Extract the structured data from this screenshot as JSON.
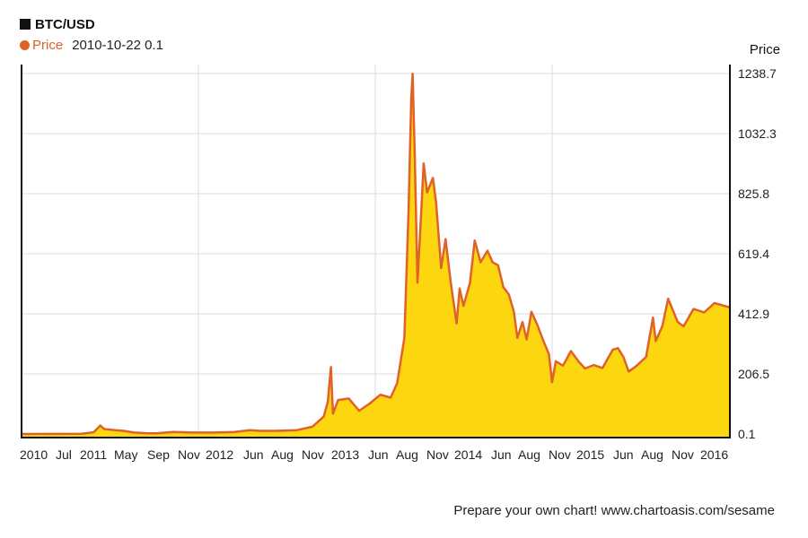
{
  "header": {
    "title": "BTC/USD",
    "legend_name": "Price",
    "legend_readout_date": "2010-10-22",
    "legend_readout_value": "0.1"
  },
  "footer": {
    "note": "Prepare your own chart! www.chartoasis.com/sesame"
  },
  "colors": {
    "line": "#e0622a",
    "fill": "#fcd60f",
    "grid": "#dddddd",
    "axis": "#111111"
  },
  "chart_data": {
    "type": "area",
    "y_axis_title": "Price",
    "y_axis_side": "right",
    "y_ticks": [
      "0.1",
      "206.5",
      "412.9",
      "619.4",
      "825.8",
      "1032.3",
      "1238.7"
    ],
    "ylim": [
      0.1,
      1238.7
    ],
    "x_tick_labels": [
      "2010",
      "Jul",
      "2011",
      "May",
      "Sep",
      "Nov",
      "2012",
      "Jun",
      "Aug",
      "Nov",
      "2013",
      "Jun",
      "Aug",
      "Nov",
      "2014",
      "Jun",
      "Aug",
      "Nov",
      "2015",
      "Jun",
      "Aug",
      "Nov",
      "2016"
    ],
    "x_range": [
      "2010-10-22",
      "2016-06-15"
    ],
    "grid": true,
    "series": [
      {
        "name": "Price",
        "points": [
          [
            "2010-10-22",
            0.1
          ],
          [
            "2011-02-01",
            0.5
          ],
          [
            "2011-04-15",
            1.0
          ],
          [
            "2011-05-20",
            6.0
          ],
          [
            "2011-06-08",
            29.0
          ],
          [
            "2011-06-20",
            17.0
          ],
          [
            "2011-07-15",
            14.0
          ],
          [
            "2011-08-15",
            11.0
          ],
          [
            "2011-09-15",
            5.0
          ],
          [
            "2011-10-20",
            3.0
          ],
          [
            "2011-11-18",
            2.3
          ],
          [
            "2012-01-08",
            7.0
          ],
          [
            "2012-03-01",
            5.0
          ],
          [
            "2012-05-01",
            5.0
          ],
          [
            "2012-07-01",
            6.5
          ],
          [
            "2012-08-17",
            13.5
          ],
          [
            "2012-09-15",
            11.0
          ],
          [
            "2012-11-01",
            11.0
          ],
          [
            "2013-01-01",
            13.5
          ],
          [
            "2013-02-15",
            25.0
          ],
          [
            "2013-03-20",
            60.0
          ],
          [
            "2013-04-01",
            110.0
          ],
          [
            "2013-04-10",
            230.0
          ],
          [
            "2013-04-16",
            70.0
          ],
          [
            "2013-05-01",
            117.0
          ],
          [
            "2013-06-01",
            122.0
          ],
          [
            "2013-07-01",
            80.0
          ],
          [
            "2013-08-01",
            105.0
          ],
          [
            "2013-09-01",
            135.0
          ],
          [
            "2013-10-01",
            125.0
          ],
          [
            "2013-10-20",
            175.0
          ],
          [
            "2013-11-10",
            330.0
          ],
          [
            "2013-11-22",
            760.0
          ],
          [
            "2013-11-30",
            1155.0
          ],
          [
            "2013-12-04",
            1238.0
          ],
          [
            "2013-12-10",
            970.0
          ],
          [
            "2013-12-18",
            520.0
          ],
          [
            "2013-12-28",
            740.0
          ],
          [
            "2014-01-05",
            930.0
          ],
          [
            "2014-01-15",
            830.0
          ],
          [
            "2014-02-01",
            880.0
          ],
          [
            "2014-02-10",
            800.0
          ],
          [
            "2014-02-25",
            570.0
          ],
          [
            "2014-03-10",
            670.0
          ],
          [
            "2014-03-25",
            520.0
          ],
          [
            "2014-04-11",
            380.0
          ],
          [
            "2014-04-20",
            500.0
          ],
          [
            "2014-05-01",
            440.0
          ],
          [
            "2014-05-20",
            520.0
          ],
          [
            "2014-06-03",
            665.0
          ],
          [
            "2014-06-20",
            590.0
          ],
          [
            "2014-07-10",
            630.0
          ],
          [
            "2014-07-25",
            590.0
          ],
          [
            "2014-08-10",
            580.0
          ],
          [
            "2014-08-25",
            505.0
          ],
          [
            "2014-09-10",
            480.0
          ],
          [
            "2014-09-25",
            420.0
          ],
          [
            "2014-10-05",
            330.0
          ],
          [
            "2014-10-20",
            385.0
          ],
          [
            "2014-11-01",
            325.0
          ],
          [
            "2014-11-15",
            420.0
          ],
          [
            "2014-12-01",
            378.0
          ],
          [
            "2014-12-20",
            320.0
          ],
          [
            "2015-01-05",
            275.0
          ],
          [
            "2015-01-14",
            178.0
          ],
          [
            "2015-01-25",
            250.0
          ],
          [
            "2015-02-15",
            235.0
          ],
          [
            "2015-03-10",
            285.0
          ],
          [
            "2015-04-01",
            250.0
          ],
          [
            "2015-04-20",
            225.0
          ],
          [
            "2015-05-15",
            237.0
          ],
          [
            "2015-06-10",
            227.0
          ],
          [
            "2015-07-10",
            290.0
          ],
          [
            "2015-07-25",
            295.0
          ],
          [
            "2015-08-10",
            265.0
          ],
          [
            "2015-08-25",
            215.0
          ],
          [
            "2015-09-15",
            232.0
          ],
          [
            "2015-10-15",
            265.0
          ],
          [
            "2015-11-04",
            400.0
          ],
          [
            "2015-11-12",
            320.0
          ],
          [
            "2015-12-01",
            370.0
          ],
          [
            "2015-12-18",
            465.0
          ],
          [
            "2016-01-15",
            385.0
          ],
          [
            "2016-02-01",
            370.0
          ],
          [
            "2016-03-01",
            430.0
          ],
          [
            "2016-04-01",
            418.0
          ],
          [
            "2016-05-01",
            450.0
          ],
          [
            "2016-06-15",
            435.0
          ]
        ]
      }
    ]
  }
}
